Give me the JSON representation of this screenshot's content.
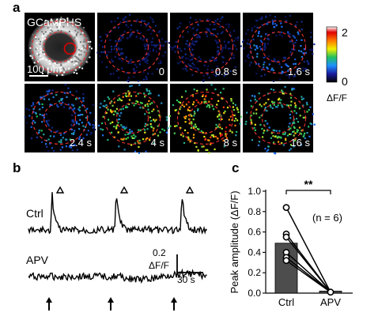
{
  "panels": {
    "a": {
      "letter": "a",
      "indicator_label": "GCaMPHS",
      "scale_bar_label": "100 μm",
      "frames": [
        "0",
        "0.8 s",
        "1.6 s",
        "2.4 s",
        "4 s",
        "8 s",
        "16 s"
      ],
      "frame_intensity": [
        0.0,
        0.05,
        0.3,
        0.45,
        0.8,
        1.0,
        0.75
      ],
      "colorbar": {
        "max_label": "2",
        "min_label": "0",
        "unit_label": "ΔF/F"
      }
    },
    "b": {
      "letter": "b",
      "ctrl_label": "Ctrl",
      "apv_label": "APV",
      "scale_amp_label": "0.2",
      "scale_amp_unit": "ΔF/F",
      "scale_time_label": "30 s",
      "event_markers": 3
    },
    "c": {
      "letter": "c",
      "annotation_n": "(n = 6)",
      "significance": "**",
      "chart_data": {
        "type": "bar",
        "categories": [
          "Ctrl",
          "APV"
        ],
        "values": [
          0.49,
          0.02
        ],
        "ylabel": "Peak amplitude (ΔF/F)",
        "ylim": [
          0,
          1.0
        ],
        "yticks": [
          "0.0",
          "0.2",
          "0.4",
          "0.6",
          "0.8",
          "1.0"
        ],
        "individual_points": {
          "Ctrl": [
            0.84,
            0.58,
            0.55,
            0.4,
            0.35,
            0.32
          ],
          "APV": [
            0.01,
            0.01,
            0.01,
            0.01,
            0.01,
            0.01
          ]
        },
        "colors": {
          "bar": "#4d4d4d",
          "points_fill": "#ffffff"
        }
      }
    }
  }
}
